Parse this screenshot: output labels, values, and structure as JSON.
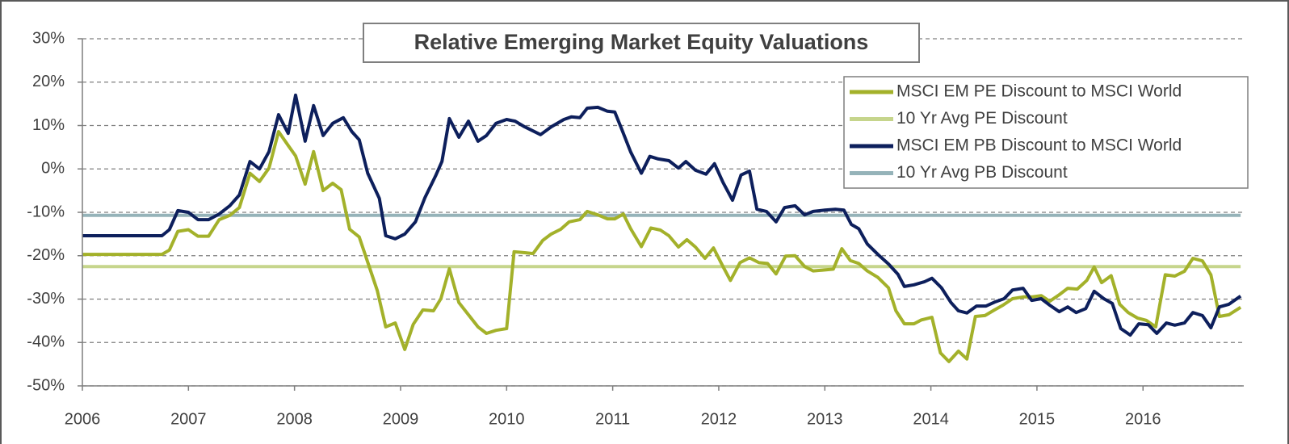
{
  "chart_data": {
    "type": "line",
    "title": "Relative Emerging Market Equity Valuations",
    "xlim": [
      2006,
      2016.95
    ],
    "xticks": [
      2006,
      2007,
      2008,
      2009,
      2010,
      2011,
      2012,
      2013,
      2014,
      2015,
      2016
    ],
    "ylim": [
      -50,
      30
    ],
    "yticks": [
      {
        "value": 30,
        "label": "30%"
      },
      {
        "value": 20,
        "label": "20%"
      },
      {
        "value": 10,
        "label": "10%"
      },
      {
        "value": 0,
        "label": "0%"
      },
      {
        "value": -10,
        "label": "-10%"
      },
      {
        "value": -20,
        "label": "-20%"
      },
      {
        "value": -30,
        "label": "-30%"
      },
      {
        "value": -40,
        "label": "-40%"
      },
      {
        "value": -50,
        "label": "-50%"
      }
    ],
    "grid": true,
    "legend": "upper right",
    "series": [
      {
        "name": "MSCI EM PE Discount to MSCI World",
        "color": "#a3b12a",
        "x": [
          2006.0,
          2006.75,
          2006.82,
          2006.9,
          2007.0,
          2007.09,
          2007.19,
          2007.29,
          2007.39,
          2007.48,
          2007.58,
          2007.67,
          2007.76,
          2007.85,
          2007.94,
          2008.01,
          2008.1,
          2008.18,
          2008.27,
          2008.36,
          2008.44,
          2008.52,
          2008.61,
          2008.69,
          2008.78,
          2008.86,
          2008.95,
          2009.04,
          2009.12,
          2009.21,
          2009.31,
          2009.38,
          2009.46,
          2009.55,
          2009.64,
          2009.73,
          2009.81,
          2009.9,
          2010.0,
          2010.07,
          2010.17,
          2010.25,
          2010.34,
          2010.42,
          2010.51,
          2010.59,
          2010.69,
          2010.76,
          2010.86,
          2010.95,
          2011.02,
          2011.1,
          2011.17,
          2011.27,
          2011.36,
          2011.45,
          2011.53,
          2011.62,
          2011.7,
          2011.78,
          2011.87,
          2011.95,
          2012.04,
          2012.11,
          2012.2,
          2012.29,
          2012.38,
          2012.46,
          2012.54,
          2012.63,
          2012.72,
          2012.81,
          2012.89,
          2012.99,
          2013.08,
          2013.16,
          2013.24,
          2013.32,
          2013.4,
          2013.5,
          2013.6,
          2013.67,
          2013.75,
          2013.84,
          2013.91,
          2014.01,
          2014.09,
          2014.17,
          2014.26,
          2014.34,
          2014.42,
          2014.51,
          2014.6,
          2014.68,
          2014.77,
          2014.87,
          2014.95,
          2015.04,
          2015.12,
          2015.21,
          2015.29,
          2015.38,
          2015.47,
          2015.54,
          2015.61,
          2015.7,
          2015.78,
          2015.86,
          2015.95,
          2016.03,
          2016.12,
          2016.21,
          2016.3,
          2016.39,
          2016.47,
          2016.56,
          2016.64,
          2016.72,
          2016.81,
          2016.92
        ],
        "values": [
          -19.7,
          -19.7,
          -18.7,
          -14.4,
          -14,
          -15.5,
          -15.5,
          -11.7,
          -10.7,
          -8.9,
          -1,
          -2.9,
          0.2,
          8.6,
          5.4,
          3,
          -3.5,
          4,
          -5,
          -3.3,
          -4.8,
          -13.9,
          -15.7,
          -21.5,
          -28,
          -36.4,
          -35.5,
          -41.6,
          -35.8,
          -32.5,
          -32.7,
          -29.9,
          -23,
          -30.8,
          -33.6,
          -36.4,
          -37.9,
          -37.2,
          -36.8,
          -19.1,
          -19.3,
          -19.5,
          -16.5,
          -15,
          -13.9,
          -12.2,
          -11.7,
          -9.8,
          -10.6,
          -11.5,
          -11.5,
          -10.4,
          -13.8,
          -17.9,
          -13.6,
          -14.1,
          -15.4,
          -18,
          -16.3,
          -18,
          -20.6,
          -18.2,
          -22.5,
          -25.7,
          -21.6,
          -20.5,
          -21.6,
          -21.8,
          -24.2,
          -20.1,
          -20,
          -22.5,
          -23.5,
          -23.3,
          -23.1,
          -18.4,
          -21.1,
          -21.8,
          -23.5,
          -25,
          -27.4,
          -32.7,
          -35.7,
          -35.7,
          -34.8,
          -34.2,
          -42.4,
          -44.4,
          -42,
          -43.8,
          -34,
          -33.8,
          -32.5,
          -31.4,
          -29.9,
          -29.5,
          -29.5,
          -29.2,
          -30.5,
          -29,
          -27.5,
          -27.7,
          -25.7,
          -22.6,
          -26.2,
          -24.6,
          -31.2,
          -33.1,
          -34.4,
          -34.9,
          -36.4,
          -24.4,
          -24.7,
          -23.6,
          -20.6,
          -21.2,
          -24.4,
          -34,
          -33.6,
          -31.9
        ]
      },
      {
        "name": "10 Yr Avg PE Discount",
        "color": "#c6d58c",
        "x": [
          2006.0,
          2016.92
        ],
        "values": [
          -22.5,
          -22.5
        ]
      },
      {
        "name": "MSCI EM PB Discount to MSCI World",
        "color": "#0d1f5c",
        "x": [
          2006.0,
          2006.75,
          2006.82,
          2006.9,
          2007.0,
          2007.09,
          2007.19,
          2007.29,
          2007.39,
          2007.48,
          2007.58,
          2007.67,
          2007.76,
          2007.85,
          2007.94,
          2008.01,
          2008.1,
          2008.18,
          2008.27,
          2008.36,
          2008.46,
          2008.54,
          2008.61,
          2008.69,
          2008.8,
          2008.86,
          2008.95,
          2009.04,
          2009.14,
          2009.23,
          2009.33,
          2009.39,
          2009.46,
          2009.55,
          2009.64,
          2009.73,
          2009.81,
          2009.9,
          2010.0,
          2010.08,
          2010.17,
          2010.32,
          2010.42,
          2010.54,
          2010.61,
          2010.69,
          2010.76,
          2010.86,
          2010.95,
          2011.02,
          2011.08,
          2011.17,
          2011.27,
          2011.35,
          2011.43,
          2011.53,
          2011.62,
          2011.69,
          2011.78,
          2011.88,
          2011.96,
          2012.04,
          2012.13,
          2012.21,
          2012.29,
          2012.36,
          2012.45,
          2012.54,
          2012.62,
          2012.72,
          2012.81,
          2012.89,
          2013.0,
          2013.1,
          2013.18,
          2013.25,
          2013.32,
          2013.4,
          2013.5,
          2013.6,
          2013.69,
          2013.75,
          2013.84,
          2013.94,
          2014.01,
          2014.1,
          2014.19,
          2014.26,
          2014.34,
          2014.43,
          2014.52,
          2014.6,
          2014.69,
          2014.77,
          2014.87,
          2014.95,
          2015.04,
          2015.12,
          2015.21,
          2015.29,
          2015.37,
          2015.46,
          2015.54,
          2015.63,
          2015.71,
          2015.79,
          2015.88,
          2015.96,
          2016.05,
          2016.13,
          2016.22,
          2016.3,
          2016.39,
          2016.47,
          2016.56,
          2016.64,
          2016.72,
          2016.81,
          2016.92
        ],
        "values": [
          -15.4,
          -15.4,
          -14,
          -9.6,
          -10,
          -11.7,
          -11.7,
          -10.4,
          -8.5,
          -6,
          1.7,
          0,
          4,
          12.5,
          8.2,
          17,
          6.4,
          14.6,
          7.7,
          10.5,
          11.8,
          8.6,
          6.7,
          -1,
          -6.8,
          -15.4,
          -16.1,
          -15,
          -12.2,
          -6.6,
          -1.6,
          1.7,
          11.6,
          7.3,
          11,
          6.4,
          7.7,
          10.5,
          11.4,
          11,
          9.7,
          7.9,
          9.7,
          11.4,
          12,
          11.8,
          14,
          14.2,
          13.3,
          13.1,
          9.5,
          3.9,
          -1,
          2.9,
          2.3,
          1.9,
          0.2,
          1.7,
          -0.3,
          -1.2,
          1.2,
          -3.1,
          -7.2,
          -1.4,
          -0.5,
          -9.3,
          -9.8,
          -12.2,
          -8.9,
          -8.5,
          -10.6,
          -9.8,
          -9.5,
          -9.3,
          -9.5,
          -12.8,
          -13.8,
          -17.3,
          -19.7,
          -21.9,
          -24.3,
          -27.1,
          -26.7,
          -26,
          -25.2,
          -27.4,
          -30.8,
          -32.7,
          -33.2,
          -31.6,
          -31.6,
          -30.7,
          -29.9,
          -27.9,
          -27.5,
          -30.3,
          -29.9,
          -31.4,
          -32.9,
          -31.8,
          -33.1,
          -32.2,
          -28.2,
          -29.9,
          -31,
          -36.8,
          -38.3,
          -35.7,
          -35.9,
          -37.9,
          -35.5,
          -36,
          -35.5,
          -33.1,
          -33.8,
          -36.6,
          -31.8,
          -31.2,
          -29.3
        ]
      },
      {
        "name": "10 Yr Avg PB Discount",
        "color": "#95b3b9",
        "x": [
          2006.0,
          2016.92
        ],
        "values": [
          -10.7,
          -10.7
        ]
      }
    ]
  }
}
